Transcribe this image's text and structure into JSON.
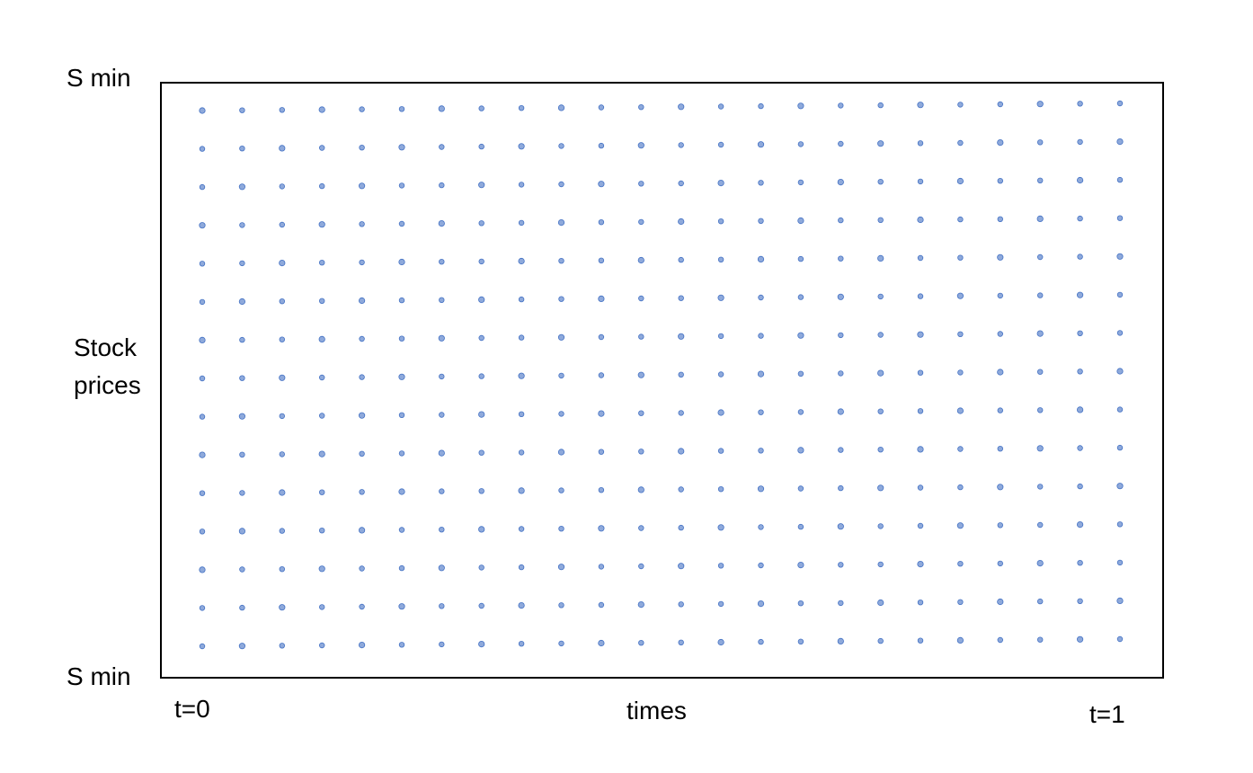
{
  "diagram": {
    "y_axis_top_label": "S min",
    "y_axis_bottom_label": "S min",
    "y_axis_label_lines": [
      "Stock",
      "prices"
    ],
    "x_axis_label": "times",
    "x_start_label": "t=0",
    "x_end_label": "t=1",
    "grid": {
      "columns": 24,
      "rows": 15,
      "point_fill": "#8EA9DB",
      "point_stroke": "#4472C4",
      "frame_color": "#000000"
    }
  }
}
